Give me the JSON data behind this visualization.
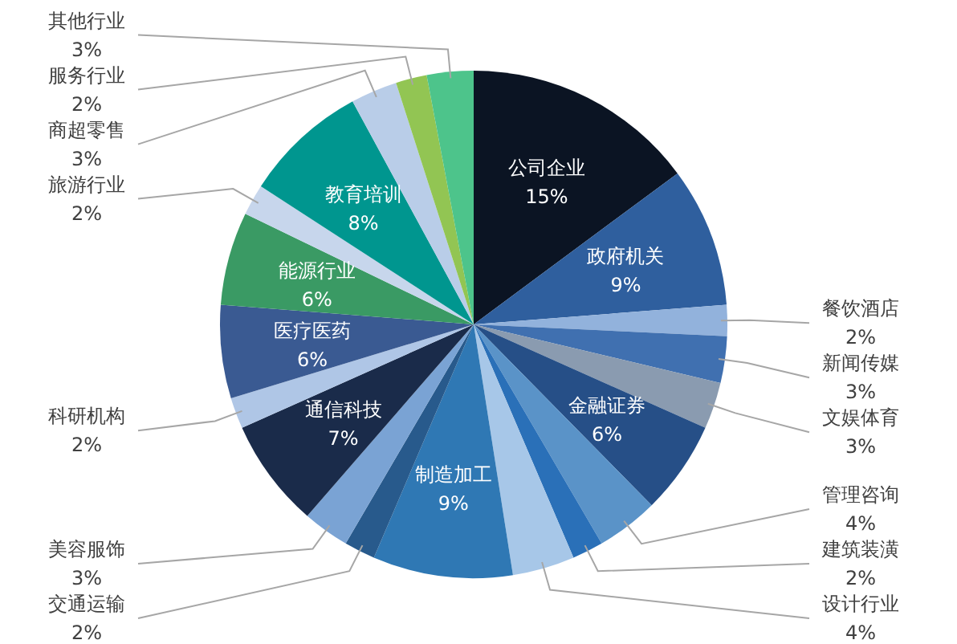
{
  "chart_data": {
    "type": "pie",
    "categories": [
      "公司企业",
      "政府机关",
      "餐饮酒店",
      "新闻传媒",
      "文娱体育",
      "金融证券",
      "管理咨询",
      "建筑装潢",
      "设计行业",
      "制造加工",
      "交通运输",
      "美容服饰",
      "通信科技",
      "科研机构",
      "医疗医药",
      "能源行业",
      "旅游行业",
      "教育培训",
      "商超零售",
      "服务行业",
      "其他行业"
    ],
    "values": [
      15,
      9,
      2,
      3,
      3,
      6,
      4,
      2,
      4,
      9,
      2,
      3,
      7,
      2,
      6,
      6,
      2,
      8,
      3,
      2,
      3
    ],
    "value_labels": [
      "15%",
      "9%",
      "2%",
      "3%",
      "3%",
      "6%",
      "4%",
      "2%",
      "4%",
      "9%",
      "2%",
      "3%",
      "7%",
      "2%",
      "6%",
      "6%",
      "2%",
      "8%",
      "3%",
      "2%",
      "3%"
    ],
    "colors": [
      "#0b1423",
      "#2f5f9e",
      "#92b2dc",
      "#4070b0",
      "#8a9bb0",
      "#264f87",
      "#5a93c8",
      "#2a70b8",
      "#a7c7e8",
      "#2f78b4",
      "#285a8c",
      "#7aa3d4",
      "#1a2b4a",
      "#afc6e6",
      "#3a5a92",
      "#3a9a64",
      "#c7d6ec",
      "#00968f",
      "#b9cde8",
      "#92c553",
      "#4dc48b"
    ]
  }
}
